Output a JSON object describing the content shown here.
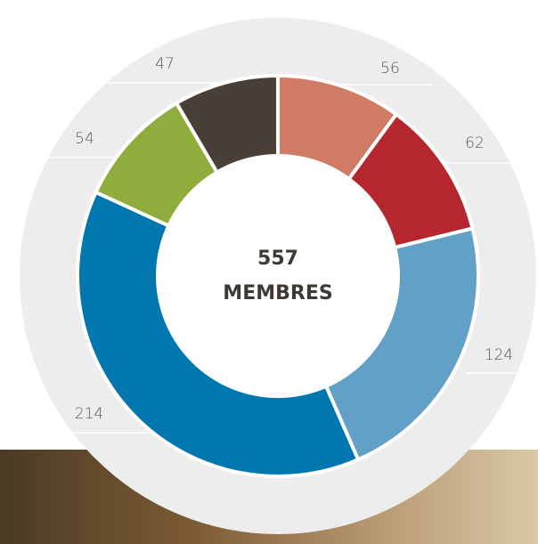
{
  "chart_data": {
    "type": "donut",
    "total": 557,
    "center_label": "MEMBRES",
    "values": [
      56,
      62,
      124,
      214,
      54,
      47
    ],
    "colors": [
      "#cf7b66",
      "#b5262e",
      "#62a0c8",
      "#0077ae",
      "#8fad3d",
      "#4a3f36"
    ]
  }
}
